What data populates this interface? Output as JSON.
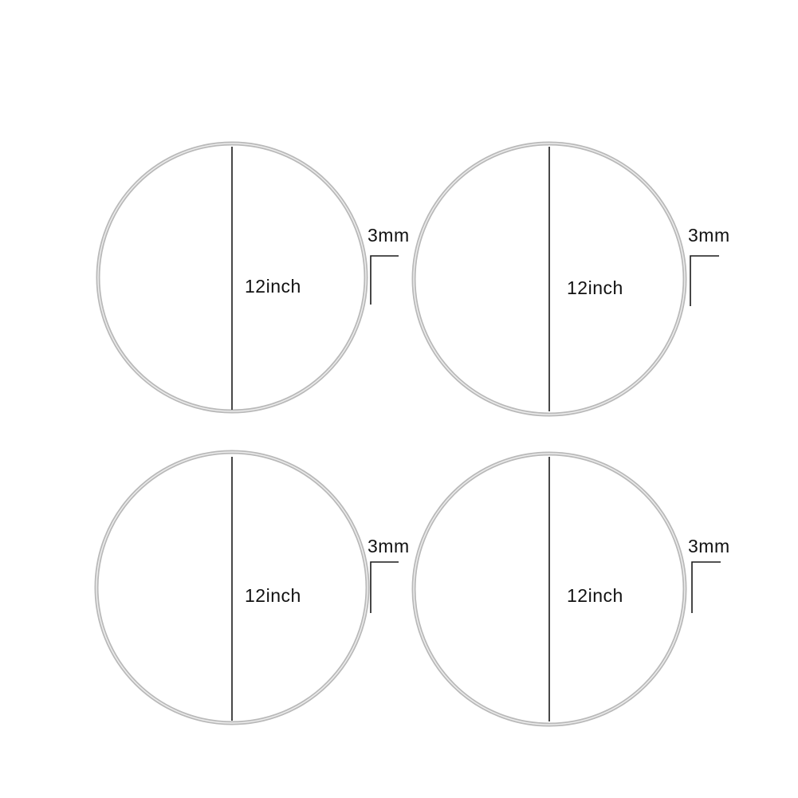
{
  "colors": {
    "ring": "#b9b9b9",
    "ring_inner": "#e6e6e6",
    "line": "#1a1a1a",
    "text": "#111111"
  },
  "hoops": [
    {
      "diameter_label": "12inch",
      "wire_label": "3mm"
    },
    {
      "diameter_label": "12inch",
      "wire_label": "3mm"
    },
    {
      "diameter_label": "12inch",
      "wire_label": "3mm"
    },
    {
      "diameter_label": "12inch",
      "wire_label": "3mm"
    }
  ]
}
